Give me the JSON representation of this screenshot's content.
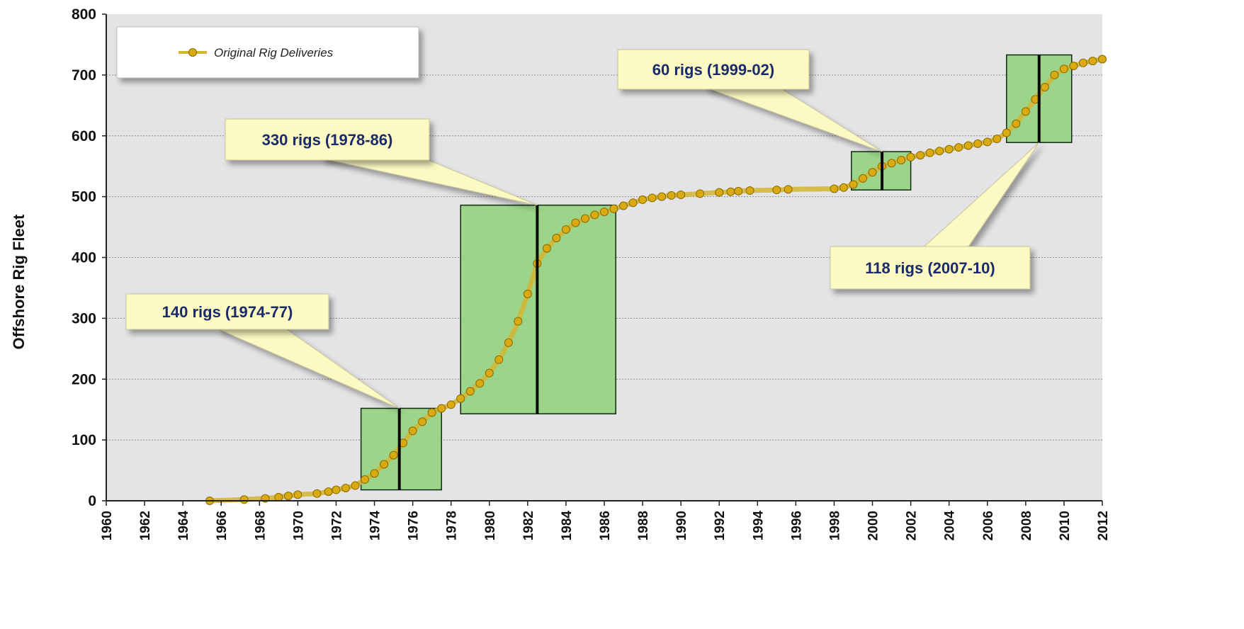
{
  "colors": {
    "plot_bg": "#e4e4e6",
    "grid": "#8a8a8a",
    "series_line": "#d2b531",
    "series_marker": "#d9aa12",
    "band": "#92d37d",
    "band_stroke": "#0e2a0e",
    "callout_fill": "#fcfac2",
    "callout_text": "#1b2a6b"
  },
  "chart_data": {
    "type": "line",
    "ylabel": "Offshore Rig Fleet",
    "xlabel": "",
    "xlim": [
      1960,
      2012
    ],
    "ylim": [
      0,
      800
    ],
    "x_ticks": [
      "1960",
      "1962",
      "1964",
      "1966",
      "1968",
      "1970",
      "1972",
      "1974",
      "1976",
      "1978",
      "1980",
      "1982",
      "1984",
      "1986",
      "1988",
      "1990",
      "1992",
      "1994",
      "1996",
      "1998",
      "2000",
      "2002",
      "2004",
      "2006",
      "2008",
      "2010",
      "2012"
    ],
    "y_ticks": [
      "0",
      "100",
      "200",
      "300",
      "400",
      "500",
      "600",
      "700",
      "800"
    ],
    "grid": "horizontal",
    "legend_position": "top-left",
    "series": [
      {
        "name": "Original Rig Deliveries",
        "x": [
          1965.4,
          1967.2,
          1968.3,
          1969.0,
          1969.5,
          1970.0,
          1971.0,
          1971.6,
          1972.0,
          1972.5,
          1973.0,
          1973.5,
          1974.0,
          1974.5,
          1975.0,
          1975.5,
          1976.0,
          1976.5,
          1977.0,
          1977.5,
          1978.0,
          1978.5,
          1979.0,
          1979.5,
          1980.0,
          1980.5,
          1981.0,
          1981.5,
          1982.0,
          1982.5,
          1983.0,
          1983.5,
          1984.0,
          1984.5,
          1985.0,
          1985.5,
          1986.0,
          1986.5,
          1987.0,
          1987.5,
          1988.0,
          1988.5,
          1989.0,
          1989.5,
          1990.0,
          1991.0,
          1992.0,
          1992.6,
          1993.0,
          1993.6,
          1995.0,
          1995.6,
          1998.0,
          1998.5,
          1999.0,
          1999.5,
          2000.0,
          2000.5,
          2001.0,
          2001.5,
          2002.0,
          2002.5,
          2003.0,
          2003.5,
          2004.0,
          2004.5,
          2005.0,
          2005.5,
          2006.0,
          2006.5,
          2007.0,
          2007.5,
          2008.0,
          2008.5,
          2009.0,
          2009.5,
          2010.0,
          2010.5,
          2011.0,
          2011.5,
          2012.0
        ],
        "y": [
          0,
          2,
          4,
          6,
          8,
          10,
          12,
          15,
          18,
          21,
          25,
          35,
          45,
          60,
          75,
          95,
          115,
          130,
          145,
          152,
          158,
          168,
          180,
          193,
          210,
          232,
          260,
          295,
          340,
          390,
          415,
          432,
          446,
          457,
          464,
          470,
          475,
          480,
          485,
          490,
          495,
          498,
          500,
          502,
          503,
          505,
          507,
          508,
          509,
          510,
          511,
          512,
          513,
          515,
          520,
          530,
          540,
          550,
          555,
          560,
          565,
          568,
          572,
          575,
          578,
          581,
          584,
          587,
          590,
          595,
          605,
          620,
          640,
          660,
          680,
          700,
          710,
          715,
          720,
          723,
          726
        ]
      }
    ],
    "bands": [
      {
        "x0": 1973.3,
        "x1": 1977.5,
        "y0": 18,
        "y1": 152,
        "mid": 1975.3
      },
      {
        "x0": 1978.5,
        "x1": 1986.6,
        "y0": 143,
        "y1": 486,
        "mid": 1982.5
      },
      {
        "x0": 1998.9,
        "x1": 2002.0,
        "y0": 511,
        "y1": 574,
        "mid": 2000.5
      },
      {
        "x0": 2007.0,
        "x1": 2010.4,
        "y0": 589,
        "y1": 733,
        "mid": 2008.7
      }
    ],
    "annotations": [
      {
        "text": "140 rigs (1974-77)",
        "target_x": 1975.3,
        "target_y": 152
      },
      {
        "text": "330 rigs (1978-86)",
        "target_x": 1982.5,
        "target_y": 486
      },
      {
        "text": "60 rigs (1999-02)",
        "target_x": 2000.5,
        "target_y": 574
      },
      {
        "text": "118 rigs (2007-10)",
        "target_x": 2008.7,
        "target_y": 589
      }
    ]
  }
}
